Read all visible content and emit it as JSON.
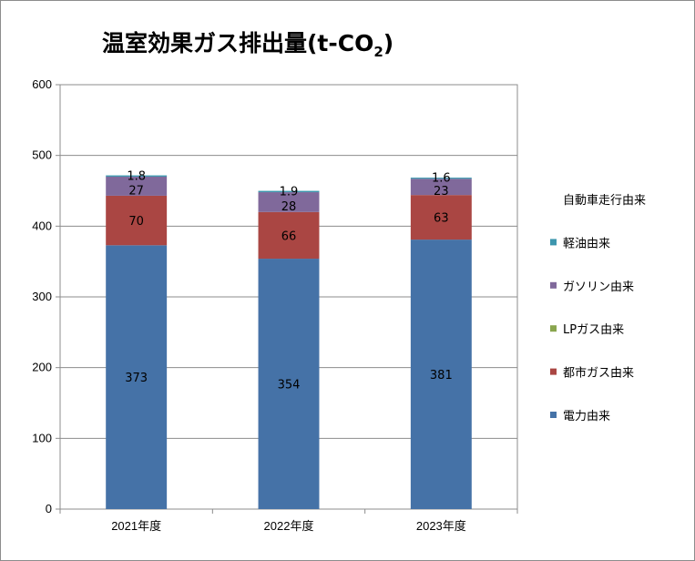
{
  "chart_data": {
    "type": "bar",
    "stacked": true,
    "title": "温室効果ガス排出量(t-CO",
    "title_subscript": "2",
    "title_close": ")",
    "categories": [
      "2021年度",
      "2022年度",
      "2023年度"
    ],
    "ylim": [
      0,
      600
    ],
    "yticks": [
      0,
      100,
      200,
      300,
      400,
      500,
      600
    ],
    "grid": true,
    "legend_position": "right",
    "series": [
      {
        "name": "電力由来",
        "color": "#4572A7",
        "values": [
          373,
          354,
          381
        ],
        "labels": [
          "373",
          "354",
          "381"
        ]
      },
      {
        "name": "都市ガス由来",
        "color": "#AA4643",
        "values": [
          70,
          66,
          63
        ],
        "labels": [
          "70",
          "66",
          "63"
        ]
      },
      {
        "name": "LPガス由来",
        "color": "#89A54E",
        "values": [
          0,
          0,
          0
        ],
        "labels": [
          "",
          "",
          ""
        ]
      },
      {
        "name": "ガソリン由来",
        "color": "#80699B",
        "values": [
          27,
          28,
          23
        ],
        "labels": [
          "27",
          "28",
          "23"
        ]
      },
      {
        "name": "軽油由来",
        "color": "#3D96AE",
        "values": [
          1.8,
          1.9,
          1.6
        ],
        "labels": [
          "1.8",
          "1.9",
          "1.6"
        ]
      },
      {
        "name": "自動車走行由来",
        "color": "#FFFFFF",
        "values": [
          0,
          0,
          0
        ],
        "labels": [
          "",
          "",
          ""
        ]
      }
    ]
  }
}
